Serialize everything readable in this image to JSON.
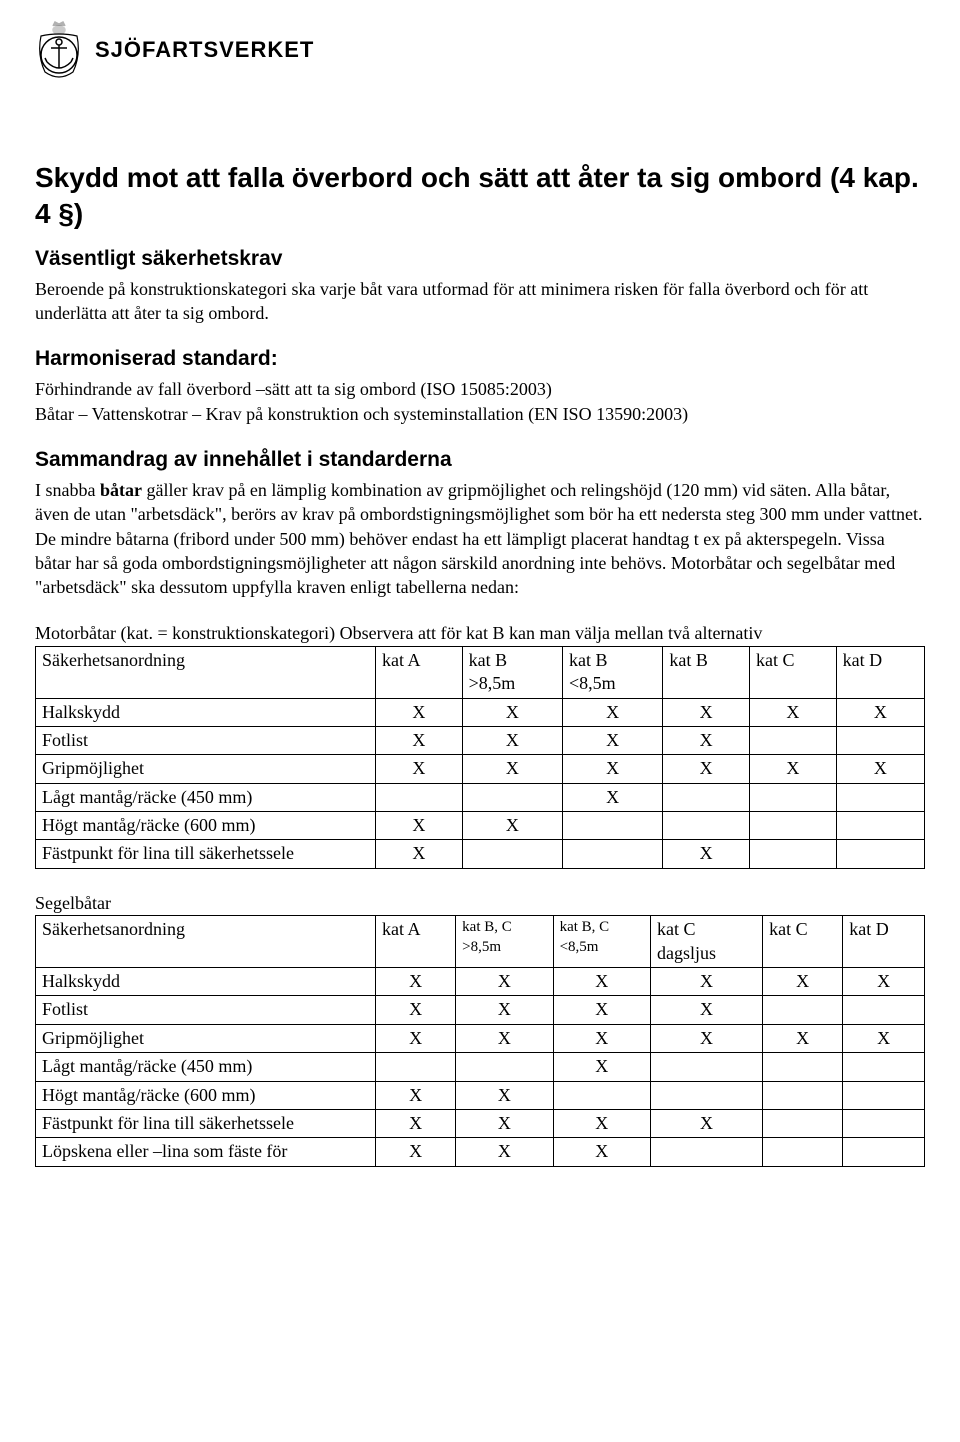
{
  "logo": {
    "org_name": "SJÖFARTSVERKET"
  },
  "title": "Skydd mot att falla överbord och sätt att åter ta sig ombord (4 kap. 4 §)",
  "section1": {
    "heading": "Väsentligt säkerhetskrav",
    "body": "Beroende på konstruktionskategori ska varje båt vara utformad för att minimera risken för falla överbord och för att underlätta att åter ta sig ombord."
  },
  "section2": {
    "heading": "Harmoniserad standard:",
    "line1": "Förhindrande av fall överbord –sätt att ta sig ombord (ISO 15085:2003)",
    "line2": "Båtar – Vattenskotrar – Krav på konstruktion och systeminstallation (EN ISO 13590:2003)"
  },
  "section3": {
    "heading": "Sammandrag av innehållet i standarderna",
    "lead_prefix": "I snabba ",
    "lead_bold": "båtar",
    "lead_rest": " gäller krav på en lämplig kombination av gripmöjlighet och relingshöjd (120 mm) vid säten. Alla båtar, även de utan \"arbetsdäck\", berörs av krav på ombordstigningsmöjlighet som bör ha ett nedersta steg 300 mm under vattnet. De mindre båtarna (fribord under 500 mm) behöver endast ha ett lämpligt placerat handtag t ex på akterspegeln. Vissa båtar har så goda ombordstigningsmöjligheter att någon särskild anordning inte behövs. Motorbåtar och segelbåtar med \"arbetsdäck\" ska dessutom uppfylla kraven enligt tabellerna nedan:"
  },
  "table1": {
    "caption": "Motorbåtar (kat. = konstruktionskategori) Observera att för kat B kan man välja mellan två alternativ",
    "columns": [
      "Säkerhetsanordning",
      "kat A",
      "kat B\n>8,5m",
      "kat B\n<8,5m",
      "kat B",
      "kat C",
      "kat D"
    ],
    "rows": [
      [
        "Halkskydd",
        "X",
        "X",
        "X",
        "X",
        "X",
        "X"
      ],
      [
        "Fotlist",
        "X",
        "X",
        "X",
        "X",
        "",
        ""
      ],
      [
        "Gripmöjlighet",
        "X",
        "X",
        "X",
        "X",
        "X",
        "X"
      ],
      [
        "Lågt mantåg/räcke (450 mm)",
        "",
        "",
        "X",
        "",
        "",
        ""
      ],
      [
        "Högt mantåg/räcke (600 mm)",
        "X",
        "X",
        "",
        "",
        "",
        ""
      ],
      [
        "Fästpunkt för lina till säkerhetssele",
        "X",
        "",
        "",
        "X",
        "",
        ""
      ]
    ]
  },
  "table2": {
    "caption": "Segelbåtar",
    "columns": [
      "Säkerhetsanordning",
      "kat A",
      "kat B, C\n>8,5m",
      "kat B, C\n<8,5m",
      "kat C\ndagsljus",
      "kat C",
      "kat D"
    ],
    "small_cols": [
      2,
      3
    ],
    "rows": [
      [
        "Halkskydd",
        "X",
        "X",
        "X",
        "X",
        "X",
        "X"
      ],
      [
        "Fotlist",
        "X",
        "X",
        "X",
        "X",
        "",
        ""
      ],
      [
        "Gripmöjlighet",
        "X",
        "X",
        "X",
        "X",
        "X",
        "X"
      ],
      [
        "Lågt mantåg/räcke (450 mm)",
        "",
        "",
        "X",
        "",
        "",
        ""
      ],
      [
        "Högt mantåg/räcke (600 mm)",
        "X",
        "X",
        "",
        "",
        "",
        ""
      ],
      [
        "Fästpunkt för lina till säkerhetssele",
        "X",
        "X",
        "X",
        "X",
        "",
        ""
      ],
      [
        "Löpskena eller –lina som fäste för",
        "X",
        "X",
        "X",
        "",
        "",
        ""
      ]
    ]
  },
  "style": {
    "body_width": 960,
    "body_height": 1442,
    "background_color": "#ffffff",
    "text_color": "#000000",
    "border_color": "#000000",
    "body_font": "Times New Roman",
    "heading_font": "Arial",
    "h1_fontsize": 28,
    "h2_fontsize": 21,
    "body_fontsize": 18,
    "table_fontsize": 18,
    "logo_fontsize": 22
  }
}
